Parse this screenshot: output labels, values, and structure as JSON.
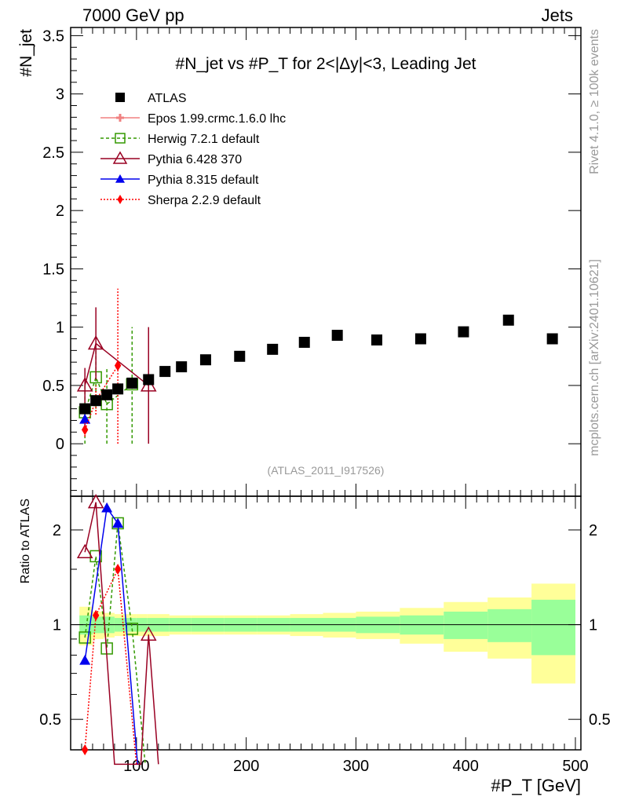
{
  "header": {
    "left": "7000 GeV pp",
    "right": "Jets"
  },
  "side_text": {
    "top": "Rivet 4.1.0, ≥ 100k events",
    "bottom": "mcplots.cern.ch [arXiv:2401.10621]"
  },
  "analysis_id": "(ATLAS_2011_I917526)",
  "chart_data": [
    {
      "type": "scatter",
      "title": "#N_jet vs #P_T for 2<|Δy|<3, Leading Jet",
      "ylabel": "#N_jet",
      "xlabel": "#P_T [GeV]",
      "xlim": [
        40,
        505
      ],
      "ylim": [
        -0.45,
        3.57
      ],
      "yticks": [
        "0",
        "0.5",
        "1",
        "1.5",
        "2",
        "2.5",
        "3",
        "3.5"
      ],
      "ytick_values": [
        0,
        0.5,
        1,
        1.5,
        2,
        2.5,
        3,
        3.5
      ],
      "xticks": [
        "100",
        "200",
        "300",
        "400",
        "500"
      ],
      "xtick_values": [
        100,
        200,
        300,
        400,
        500
      ],
      "series": [
        {
          "name": "ATLAS",
          "color": "#000000",
          "marker": "square",
          "x": [
            53,
            63,
            73,
            83,
            96,
            111,
            126,
            141,
            163,
            194,
            224,
            253,
            283,
            319,
            359,
            398,
            439,
            479
          ],
          "y": [
            0.3,
            0.37,
            0.42,
            0.47,
            0.52,
            0.55,
            0.62,
            0.66,
            0.72,
            0.75,
            0.81,
            0.87,
            0.93,
            0.89,
            0.9,
            0.96,
            1.06,
            0.9
          ]
        },
        {
          "name": "Epos 1.99.crmc.1.6.0 lhc",
          "color": "#f08080",
          "marker": "cross",
          "x": [],
          "y": []
        },
        {
          "name": "Herwig 7.2.1 default",
          "color": "#339900",
          "marker": "open-square",
          "dash": "4,3",
          "x": [
            53,
            63,
            73,
            96
          ],
          "y": [
            0.27,
            0.57,
            0.34,
            0.51
          ],
          "err_lo": [
            0.0,
            0.3,
            0.0,
            0.0
          ],
          "err_hi": [
            0.5,
            0.8,
            0.66,
            1.0
          ]
        },
        {
          "name": "Pythia 6.428 370",
          "color": "#990022",
          "marker": "open-triangle",
          "x": [
            53,
            63,
            111
          ],
          "y": [
            0.5,
            0.86,
            0.5
          ],
          "err_lo": [
            0.35,
            0.55,
            0.0
          ],
          "err_hi": [
            0.65,
            1.17,
            1.0
          ]
        },
        {
          "name": "Pythia 8.315 default",
          "color": "#0000ee",
          "marker": "triangle",
          "x": [
            53
          ],
          "y": [
            0.21
          ],
          "err_lo": [
            0.15
          ],
          "err_hi": [
            0.28
          ]
        },
        {
          "name": "Sherpa 2.2.9 default",
          "color": "#ff0000",
          "marker": "diamond",
          "dash": "2,2",
          "x": [
            53,
            63,
            83
          ],
          "y": [
            0.12,
            0.37,
            0.67
          ],
          "err_lo": [
            0.06,
            0.25,
            0.0
          ],
          "err_hi": [
            0.18,
            0.5,
            1.33
          ]
        }
      ]
    },
    {
      "type": "line",
      "ylabel": "Ratio to ATLAS",
      "yscale": "log",
      "ylim": [
        0.4,
        2.56
      ],
      "xlim": [
        40,
        505
      ],
      "yticks": [
        "0.5",
        "1",
        "2"
      ],
      "ytick_values": [
        0.5,
        1,
        2
      ],
      "band": {
        "edges": [
          48,
          60,
          70,
          80,
          90,
          100,
          110,
          130,
          150,
          180,
          210,
          240,
          270,
          300,
          340,
          380,
          420,
          460,
          500
        ],
        "green": [
          0.07,
          0.06,
          0.06,
          0.05,
          0.05,
          0.05,
          0.05,
          0.05,
          0.05,
          0.05,
          0.05,
          0.05,
          0.05,
          0.06,
          0.07,
          0.1,
          0.12,
          0.2
        ],
        "yellow": [
          0.14,
          0.1,
          0.09,
          0.08,
          0.08,
          0.08,
          0.08,
          0.07,
          0.07,
          0.07,
          0.07,
          0.08,
          0.09,
          0.1,
          0.13,
          0.18,
          0.22,
          0.35
        ]
      },
      "series": [
        {
          "name": "Herwig 7.2.1 default",
          "x": [
            53,
            63,
            73,
            83,
            96,
            108
          ],
          "y": [
            0.91,
            1.65,
            0.84,
            2.1,
            0.97,
            0.35
          ]
        },
        {
          "name": "Pythia 6.428 370",
          "x": [
            53,
            63,
            80,
            104,
            111,
            120
          ],
          "y": [
            1.7,
            2.45,
            0.35,
            0.35,
            0.93,
            0.35
          ]
        },
        {
          "name": "Pythia 8.315 default",
          "x": [
            53,
            73,
            83,
            101
          ],
          "y": [
            0.77,
            2.35,
            2.1,
            0.35
          ]
        },
        {
          "name": "Sherpa 2.2.9 default",
          "x": [
            53,
            63,
            83,
            100
          ],
          "y": [
            0.4,
            1.07,
            1.5,
            0.35
          ]
        }
      ]
    }
  ]
}
